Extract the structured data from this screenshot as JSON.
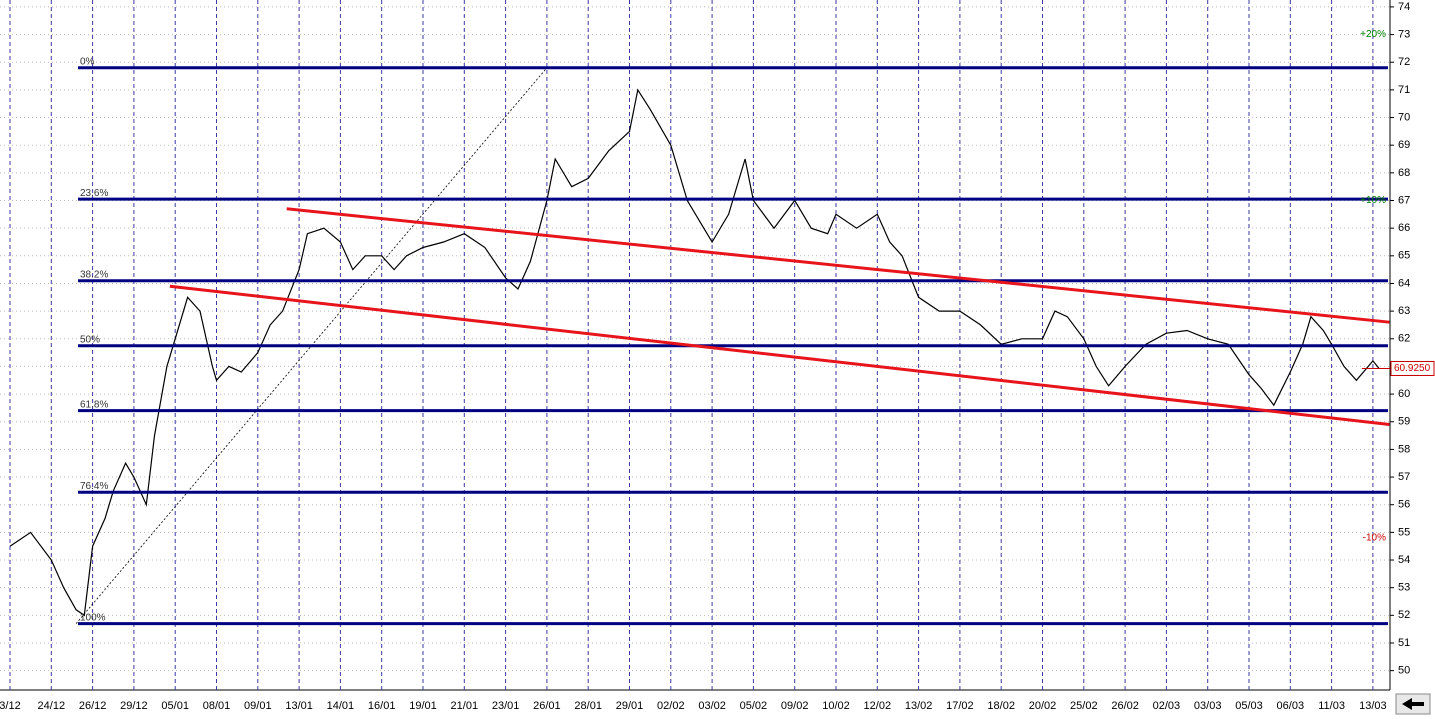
{
  "chart_data": {
    "type": "line",
    "categories": [
      "3/12",
      "24/12",
      "26/12",
      "29/12",
      "05/01",
      "08/01",
      "09/01",
      "13/01",
      "14/01",
      "16/01",
      "19/01",
      "21/01",
      "23/01",
      "26/01",
      "28/01",
      "29/01",
      "02/02",
      "03/02",
      "05/02",
      "09/02",
      "10/02",
      "12/02",
      "13/02",
      "17/02",
      "18/02",
      "20/02",
      "25/02",
      "26/02",
      "02/03",
      "03/03",
      "05/03",
      "06/03",
      "11/03",
      "13/03"
    ],
    "ylim": [
      49.3,
      74.25
    ],
    "yticks": [
      50,
      51,
      52,
      53,
      54,
      55,
      56,
      57,
      58,
      59,
      60,
      61,
      62,
      63,
      64,
      65,
      66,
      67,
      68,
      69,
      70,
      71,
      72,
      73,
      74
    ],
    "grid": true,
    "series": [
      {
        "color": "#000000",
        "x": [
          0,
          0.5,
          1,
          1.3,
          1.6,
          1.8,
          2,
          2.3,
          2.5,
          2.8,
          3,
          3.3,
          3.5,
          3.8,
          4,
          4.3,
          4.6,
          4.9,
          5,
          5.3,
          5.6,
          6,
          6.3,
          6.6,
          7,
          7.2,
          7.6,
          8,
          8.3,
          8.6,
          9,
          9.3,
          9.6,
          10,
          10.5,
          11,
          11.5,
          12,
          12.3,
          12.6,
          13,
          13.2,
          13.6,
          14,
          14.5,
          15,
          15.2,
          15.5,
          16,
          16.4,
          16.8,
          17,
          17.4,
          17.8,
          18,
          18.5,
          19,
          19.4,
          19.8,
          20,
          20.5,
          21,
          21.3,
          21.6,
          22,
          22.5,
          23,
          23.5,
          24,
          24.5,
          25,
          25.3,
          25.6,
          26,
          26.3,
          26.6,
          27,
          27.5,
          28,
          28.5,
          29,
          29.5,
          30,
          30.3,
          30.6,
          31,
          31.3,
          31.5,
          31.8,
          32,
          32.3,
          32.6,
          33,
          33.15
        ],
        "values": [
          54.5,
          55,
          54,
          53,
          52.2,
          52,
          54.5,
          55.5,
          56.5,
          57.5,
          57,
          56,
          58.5,
          61,
          62,
          63.5,
          63,
          61,
          60.5,
          61,
          60.8,
          61.5,
          62.5,
          63,
          64.5,
          65.8,
          66,
          65.5,
          64.5,
          65,
          65,
          64.5,
          65,
          65.3,
          65.5,
          65.8,
          65.3,
          64.2,
          63.8,
          64.8,
          67,
          68.5,
          67.5,
          67.8,
          68.8,
          69.5,
          71,
          70.3,
          69,
          67,
          66,
          65.5,
          66.5,
          68.5,
          67,
          66,
          67,
          66,
          65.8,
          66.5,
          66,
          66.5,
          65.5,
          65,
          63.5,
          63,
          63,
          62.5,
          61.8,
          62,
          62,
          63,
          62.8,
          62,
          61,
          60.3,
          61,
          61.8,
          62.2,
          62.3,
          62,
          61.8,
          60.7,
          60.2,
          59.6,
          60.8,
          61.8,
          62.8,
          62.3,
          61.8,
          61,
          60.5,
          61.2,
          60.925
        ]
      }
    ],
    "last_price": {
      "value": 60.925,
      "label": "60.9250"
    },
    "fib_levels": [
      {
        "value": 71.8,
        "label": "0%"
      },
      {
        "value": 67.05,
        "label": "23.6%"
      },
      {
        "value": 64.1,
        "label": "38.2%"
      },
      {
        "value": 61.75,
        "label": "50%"
      },
      {
        "value": 59.4,
        "label": "61.8%"
      },
      {
        "value": 56.45,
        "label": "76.4%"
      },
      {
        "value": 51.7,
        "label": "100%"
      }
    ],
    "fib_anchor_x": [
      1.6,
      13.0
    ],
    "trend_lines": [
      {
        "color": "#e8141c",
        "x": [
          6.7,
          33.4
        ],
        "values": [
          66.7,
          62.6
        ]
      },
      {
        "color": "#e8141c",
        "x": [
          3.87,
          33.4
        ],
        "values": [
          63.9,
          58.9
        ]
      }
    ],
    "percent_marks": [
      {
        "value": 73.0,
        "label": "+20%",
        "color": "#008000"
      },
      {
        "value": 67.0,
        "label": "+10%",
        "color": "#008000"
      },
      {
        "value": 54.8,
        "label": "-10%",
        "color": "#cc0000"
      }
    ]
  }
}
